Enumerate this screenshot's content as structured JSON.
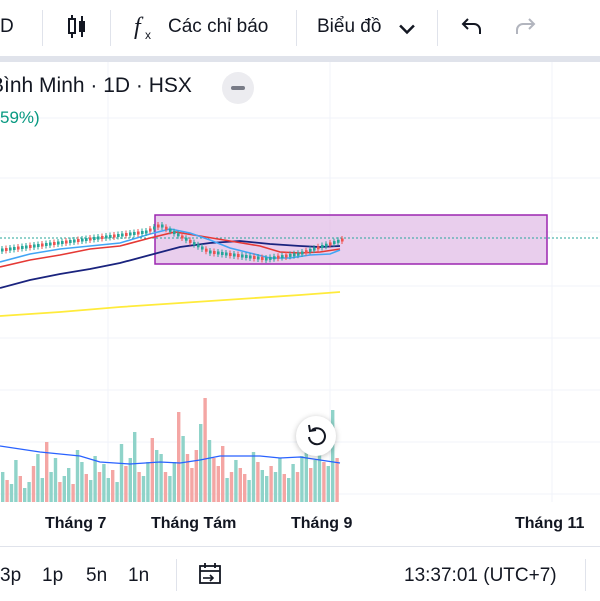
{
  "toolbar": {
    "interval_label": "D",
    "indicators_label": "Các chỉ báo",
    "chart_menu_label": "Biểu đồ",
    "icons": [
      "candles-icon",
      "fx-icon",
      "chevron-down-icon",
      "undo-icon",
      "redo-icon"
    ]
  },
  "legend": {
    "symbol_line": "Bình Minh · 1D · HSX",
    "change_text": "59%)"
  },
  "time_axis": {
    "labels": [
      "Tháng 7",
      "Tháng Tám",
      "Tháng 9",
      "Tháng 11"
    ]
  },
  "bottom_bar": {
    "ranges": [
      "3p",
      "1p",
      "5n",
      "1n"
    ],
    "clock": "13:37:01 (UTC+7)"
  },
  "colors": {
    "up": "#26a69a",
    "down": "#ef5350",
    "ma_red": "#e53935",
    "ma_blue": "#1a237e",
    "ma_yellow": "#fff176",
    "ma_light_blue": "#42a5f5",
    "rect_fill": "#e1bee7",
    "rect_border": "#9c27b0"
  },
  "chart_data": {
    "type": "candlestick",
    "candles_trend": [
      {
        "segment": "Tháng 7 → Tháng Tám",
        "direction": "up"
      },
      {
        "segment": "Tháng Tám → Tháng 9",
        "direction": "down"
      },
      {
        "segment": "Tháng 9",
        "direction": "up"
      }
    ],
    "moving_averages": [
      "red",
      "light-blue",
      "dark-blue",
      "yellow"
    ],
    "volume_bars": "green/red by candle direction",
    "annotation": "purple rectangle zone"
  }
}
